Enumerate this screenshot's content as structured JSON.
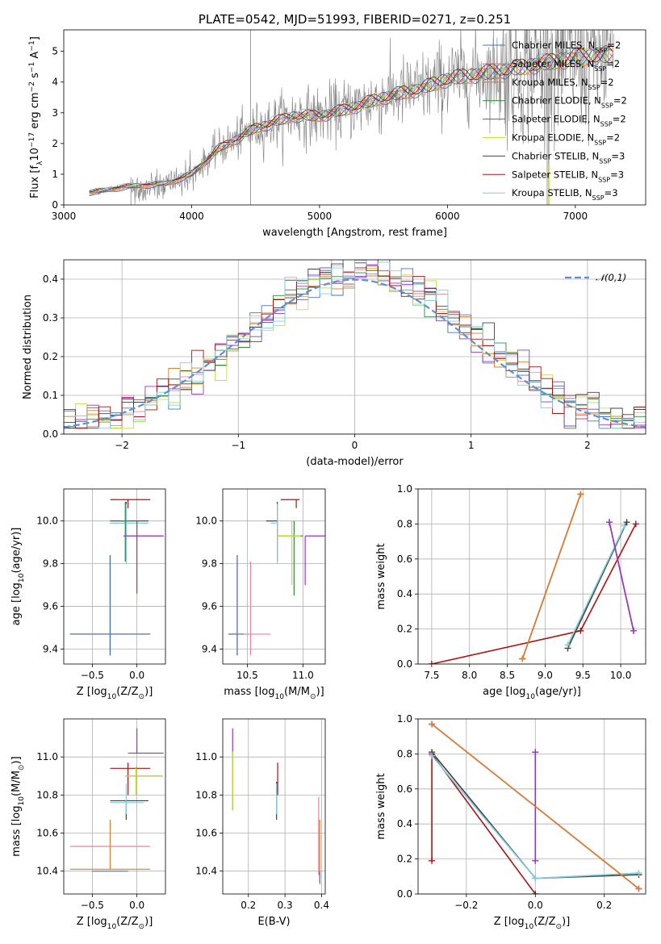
{
  "colors": {
    "Chabrier MILES": "#4c72b0",
    "Salpeter MILES": "#e8829c",
    "Kroupa MILES": "#e07b28",
    "Chabrier ELODIE": "#2e8b3d",
    "Salpeter ELODIE": "#9b30c8",
    "Kroupa ELODIE": "#c8dc3c",
    "Chabrier STELIB": "#404040",
    "Salpeter STELIB": "#b01010",
    "Kroupa STELIB": "#80d0e0",
    "data": "#808080",
    "normal": "#5b8fd9"
  },
  "chart_data": [
    {
      "id": "spectrum",
      "type": "line",
      "title": "PLATE=0542, MJD=51993, FIBERID=0271, z=0.251",
      "xlabel": "wavelength [Angstrom, rest frame]",
      "ylabel": "Flux [f$_\\lambda$10$^{-17}$ erg cm$^{-2}$ s$^{-1}$ A$^{-1}$]",
      "xlim": [
        3000,
        7550
      ],
      "ylim": [
        0,
        5.7
      ],
      "xticks": [
        "3000",
        "4000",
        "5000",
        "6000",
        "7000"
      ],
      "yticks": [
        "0",
        "1",
        "2",
        "3",
        "4",
        "5"
      ],
      "grid": false,
      "legend_position": "top-right",
      "series": [
        {
          "name": "Chabrier MILES, N$_{SSP}$=2"
        },
        {
          "name": "Salpeter MILES, N$_{SSP}$=2"
        },
        {
          "name": "Kroupa MILES, N$_{SSP}$=2"
        },
        {
          "name": "Chabrier ELODIE, N$_{SSP}$=2"
        },
        {
          "name": "Salpeter ELODIE, N$_{SSP}$=2"
        },
        {
          "name": "Kroupa ELODIE, N$_{SSP}$=2"
        },
        {
          "name": "Chabrier STELIB, N$_{SSP}$=3"
        },
        {
          "name": "Salpeter STELIB, N$_{SSP}$=3"
        },
        {
          "name": "Kroupa STELIB, N$_{SSP}$=3"
        }
      ],
      "continuum": {
        "x": [
          3200,
          3500,
          3800,
          4000,
          4200,
          4500,
          4800,
          5000,
          5200,
          5500,
          5800,
          6000,
          6300,
          6600,
          7000,
          7300
        ],
        "y": [
          0.4,
          0.6,
          0.7,
          1.0,
          1.8,
          2.5,
          2.9,
          2.9,
          3.1,
          3.5,
          3.8,
          4.1,
          4.3,
          4.5,
          4.8,
          4.9
        ]
      }
    },
    {
      "id": "residuals",
      "type": "bar",
      "xlabel": "(data-model)/error",
      "ylabel": "Normed distribution",
      "xlim": [
        -2.5,
        2.5
      ],
      "ylim": [
        0,
        0.45
      ],
      "xticks": [
        "−2",
        "−1",
        "0",
        "1",
        "2"
      ],
      "yticks": [
        "0.0",
        "0.1",
        "0.2",
        "0.3",
        "0.4"
      ],
      "grid": true,
      "bin_width": 0.1,
      "legend_position": "top-right",
      "series": [
        {
          "name": "$\\mathcal{N}(0,1)$"
        }
      ]
    },
    {
      "id": "age-vs-Z",
      "type": "scatter",
      "xlabel": "Z [log$_{10}$(Z/Z$_\\odot$)]",
      "ylabel": "age  [log$_{10}$(age/yr)]",
      "xlim": [
        -0.82,
        0.32
      ],
      "ylim": [
        9.33,
        10.15
      ],
      "xticks": [
        "−0.5",
        "0.0"
      ],
      "yticks": [
        "9.4",
        "9.6",
        "9.8",
        "10.0"
      ],
      "grid": true,
      "points": [
        {
          "model": "Kroupa MILES",
          "x": -0.3,
          "xerr": [
            0.45,
            0.45
          ],
          "y": 9.47,
          "yerr": [
            0.1,
            0.37
          ]
        },
        {
          "model": "Salpeter MILES",
          "x": -0.3,
          "xerr": [
            0.45,
            0.45
          ],
          "y": 9.47,
          "yerr": [
            0.1,
            0.37
          ]
        },
        {
          "model": "Chabrier MILES",
          "x": -0.3,
          "xerr": [
            0.45,
            0.45
          ],
          "y": 9.47,
          "yerr": [
            0.1,
            0.37
          ]
        },
        {
          "model": "Salpeter STELIB",
          "x": -0.1,
          "xerr": [
            0.2,
            0.25
          ],
          "y": 10.1,
          "yerr": [
            0.04,
            0.0
          ]
        },
        {
          "model": "Chabrier STELIB",
          "x": -0.12,
          "xerr": [
            0.18,
            0.25
          ],
          "y": 10.0,
          "yerr": [
            0.19,
            0.09
          ]
        },
        {
          "model": "Kroupa STELIB",
          "x": -0.12,
          "xerr": [
            0.18,
            0.25
          ],
          "y": 9.99,
          "yerr": [
            0.19,
            0.09
          ]
        },
        {
          "model": "Chabrier ELODIE",
          "x": -0.13,
          "xerr": [
            0.05,
            0.05
          ],
          "y": 10.0,
          "yerr": [
            0.19,
            0.09
          ]
        },
        {
          "model": "Kroupa ELODIE",
          "x": 0.0,
          "xerr": [
            0.15,
            0.3
          ],
          "y": 9.93,
          "yerr": [
            0.3,
            0.07
          ]
        },
        {
          "model": "Salpeter ELODIE",
          "x": 0.0,
          "xerr": [
            0.15,
            0.3
          ],
          "y": 9.93,
          "yerr": [
            0.27,
            0.07
          ]
        }
      ]
    },
    {
      "id": "age-vs-mass",
      "type": "scatter",
      "xlabel": "mass [log$_{10}$(M/M$_\\odot$)]",
      "ylabel": "",
      "xlim": [
        10.28,
        11.2
      ],
      "ylim": [
        9.33,
        10.15
      ],
      "xticks": [
        "10.5",
        "11.0"
      ],
      "yticks": [
        "9.4",
        "9.6",
        "9.8",
        "10.0"
      ],
      "grid": true,
      "points": [
        {
          "model": "Kroupa MILES",
          "x": 10.41,
          "xerr": [
            0.08,
            0.0
          ],
          "y": 9.47,
          "yerr": [
            0.1,
            0.37
          ]
        },
        {
          "model": "Salpeter MILES",
          "x": 10.53,
          "xerr": [
            0.1,
            0.18
          ],
          "y": 9.47,
          "yerr": [
            0.1,
            0.34
          ]
        },
        {
          "model": "Chabrier MILES",
          "x": 10.41,
          "xerr": [
            0.08,
            0.06
          ],
          "y": 9.47,
          "yerr": [
            0.1,
            0.37
          ]
        },
        {
          "model": "Salpeter STELIB",
          "x": 10.94,
          "xerr": [
            0.14,
            0.03
          ],
          "y": 10.1,
          "yerr": [
            0.04,
            0.0
          ]
        },
        {
          "model": "Chabrier STELIB",
          "x": 10.77,
          "xerr": [
            0.1,
            0.0
          ],
          "y": 10.0,
          "yerr": [
            0.19,
            0.09
          ]
        },
        {
          "model": "Kroupa STELIB",
          "x": 10.77,
          "xerr": [
            0.06,
            0.0
          ],
          "y": 9.99,
          "yerr": [
            0.19,
            0.09
          ]
        },
        {
          "model": "Chabrier ELODIE",
          "x": 10.92,
          "xerr": [
            0.15,
            0.08
          ],
          "y": 9.93,
          "yerr": [
            0.28,
            0.07
          ]
        },
        {
          "model": "Kroupa ELODIE",
          "x": 10.9,
          "xerr": [
            0.13,
            0.08
          ],
          "y": 9.93,
          "yerr": [
            0.23,
            0.07
          ]
        },
        {
          "model": "Salpeter ELODIE",
          "x": 11.02,
          "xerr": [
            0.0,
            0.18
          ],
          "y": 9.93,
          "yerr": [
            0.23,
            0.0
          ]
        }
      ]
    },
    {
      "id": "massweight-vs-age",
      "type": "line",
      "xlabel": "age  [log$_{10}$(age/yr)]",
      "ylabel": "mass weight",
      "xlim": [
        7.32,
        10.33
      ],
      "ylim": [
        0,
        1
      ],
      "xticks": [
        "7.5",
        "8.0",
        "8.5",
        "9.0",
        "9.5",
        "10.0"
      ],
      "yticks": [
        "0.0",
        "0.2",
        "0.4",
        "0.6",
        "0.8",
        "1.0"
      ],
      "grid": true,
      "series": [
        {
          "model": "Salpeter STELIB",
          "x": [
            7.5,
            9.47,
            10.2
          ],
          "y": [
            0.0,
            0.19,
            0.8
          ]
        },
        {
          "model": "Chabrier STELIB",
          "x": [
            9.3,
            10.08
          ],
          "y": [
            0.09,
            0.81
          ]
        },
        {
          "model": "Kroupa STELIB",
          "x": [
            9.3,
            10.05
          ],
          "y": [
            0.11,
            0.79
          ]
        },
        {
          "model": "Chabrier ELODIE",
          "x": [
            9.85,
            10.17
          ],
          "y": [
            0.81,
            0.19
          ]
        },
        {
          "model": "Kroupa ELODIE",
          "x": [
            9.85,
            10.17
          ],
          "y": [
            0.81,
            0.19
          ]
        },
        {
          "model": "Salpeter ELODIE",
          "x": [
            9.85,
            10.17
          ],
          "y": [
            0.81,
            0.19
          ]
        },
        {
          "model": "Chabrier MILES",
          "x": [
            8.7,
            9.47
          ],
          "y": [
            0.03,
            0.97
          ]
        },
        {
          "model": "Salpeter MILES",
          "x": [
            8.7,
            9.47
          ],
          "y": [
            0.03,
            0.97
          ]
        },
        {
          "model": "Kroupa MILES",
          "x": [
            8.7,
            9.47
          ],
          "y": [
            0.03,
            0.97
          ]
        }
      ]
    },
    {
      "id": "mass-vs-Z",
      "type": "scatter",
      "xlabel": "Z [log$_{10}$(Z/Z$_\\odot$)]",
      "ylabel": "mass [log$_{10}$(M/M$_\\odot$)]",
      "xlim": [
        -0.82,
        0.32
      ],
      "ylim": [
        10.28,
        11.2
      ],
      "xticks": [
        "−0.5",
        "0.0"
      ],
      "yticks": [
        "10.4",
        "10.6",
        "10.8",
        "11.0"
      ],
      "grid": true,
      "points": [
        {
          "model": "Kroupa MILES",
          "x": -0.3,
          "xerr": [
            0.45,
            0.45
          ],
          "y": 10.41,
          "yerr": [
            0.0,
            0.26
          ]
        },
        {
          "model": "Salpeter MILES",
          "x": -0.3,
          "xerr": [
            0.45,
            0.45
          ],
          "y": 10.53,
          "yerr": [
            0.0,
            0.0
          ]
        },
        {
          "model": "Chabrier MILES",
          "x": -0.3,
          "xerr": [
            0.2,
            0.2
          ],
          "y": 10.4,
          "yerr": [
            0.0,
            0.0
          ]
        },
        {
          "model": "Salpeter STELIB",
          "x": -0.1,
          "xerr": [
            0.2,
            0.25
          ],
          "y": 10.94,
          "yerr": [
            0.14,
            0.03
          ]
        },
        {
          "model": "Chabrier STELIB",
          "x": -0.12,
          "xerr": [
            0.18,
            0.25
          ],
          "y": 10.77,
          "yerr": [
            0.1,
            0.0
          ]
        },
        {
          "model": "Kroupa STELIB",
          "x": -0.12,
          "xerr": [
            0.18,
            0.2
          ],
          "y": 10.76,
          "yerr": [
            0.06,
            0.1
          ]
        },
        {
          "model": "Chabrier ELODIE",
          "x": -0.01,
          "xerr": [
            0.12,
            0.3
          ],
          "y": 10.9,
          "yerr": [
            0.1,
            0.05
          ]
        },
        {
          "model": "Kroupa ELODIE",
          "x": -0.01,
          "xerr": [
            0.12,
            0.3
          ],
          "y": 10.9,
          "yerr": [
            0.1,
            0.05
          ]
        },
        {
          "model": "Salpeter ELODIE",
          "x": 0.0,
          "xerr": [
            0.1,
            0.3
          ],
          "y": 11.02,
          "yerr": [
            0.0,
            0.13
          ]
        }
      ]
    },
    {
      "id": "mass-vs-ebv",
      "type": "scatter",
      "xlabel": "E(B-V)",
      "ylabel": "",
      "xlim": [
        0.13,
        0.41
      ],
      "ylim": [
        10.28,
        11.2
      ],
      "xticks": [
        "0.2",
        "0.3",
        "0.4"
      ],
      "yticks": [
        "10.4",
        "10.6",
        "10.8",
        "11.0"
      ],
      "grid": true,
      "points": [
        {
          "model": "Salpeter ELODIE",
          "x": 0.157,
          "y": 11.02,
          "yerr": [
            0.0,
            0.13
          ]
        },
        {
          "model": "Chabrier ELODIE",
          "x": 0.157,
          "y": 10.9,
          "yerr": [
            0.18,
            0.13
          ]
        },
        {
          "model": "Kroupa ELODIE",
          "x": 0.157,
          "y": 10.9,
          "yerr": [
            0.18,
            0.13
          ]
        },
        {
          "model": "Salpeter STELIB",
          "x": 0.28,
          "y": 10.94,
          "yerr": [
            0.14,
            0.03
          ]
        },
        {
          "model": "Chabrier STELIB",
          "x": 0.277,
          "y": 10.77,
          "yerr": [
            0.1,
            0.1
          ]
        },
        {
          "model": "Kroupa STELIB",
          "x": 0.277,
          "y": 10.76,
          "yerr": [
            0.06,
            0.1
          ]
        },
        {
          "model": "Kroupa MILES",
          "x": 0.395,
          "y": 10.41,
          "yerr": [
            0.08,
            0.26
          ]
        },
        {
          "model": "Salpeter MILES",
          "x": 0.392,
          "y": 10.53,
          "yerr": [
            0.15,
            0.26
          ]
        },
        {
          "model": "Chabrier MILES",
          "x": 0.395,
          "y": 10.4,
          "yerr": [
            0.06,
            0.0
          ]
        }
      ]
    },
    {
      "id": "massweight-vs-Z",
      "type": "line",
      "xlabel": "Z [log$_{10}$(Z/Z$_\\odot$)]",
      "ylabel": "mass weight",
      "xlim": [
        -0.34,
        0.32
      ],
      "ylim": [
        0,
        1
      ],
      "xticks": [
        "−0.2",
        "0.0",
        "0.2"
      ],
      "yticks": [
        "0.0",
        "0.2",
        "0.4",
        "0.6",
        "0.8",
        "1.0"
      ],
      "grid": true,
      "series": [
        {
          "model": "Salpeter STELIB",
          "x": [
            -0.3,
            -0.3,
            0.0
          ],
          "y": [
            0.19,
            0.8,
            0.0
          ]
        },
        {
          "model": "Chabrier STELIB",
          "x": [
            -0.3,
            0.0,
            0.3
          ],
          "y": [
            0.81,
            0.09,
            0.11
          ]
        },
        {
          "model": "Kroupa STELIB",
          "x": [
            -0.3,
            0.0,
            0.3
          ],
          "y": [
            0.79,
            0.09,
            0.12
          ]
        },
        {
          "model": "Chabrier ELODIE",
          "x": [
            0.0,
            0.0
          ],
          "y": [
            0.19,
            0.81
          ]
        },
        {
          "model": "Kroupa ELODIE",
          "x": [
            0.0,
            0.0
          ],
          "y": [
            0.19,
            0.81
          ]
        },
        {
          "model": "Salpeter ELODIE",
          "x": [
            0.0,
            0.0
          ],
          "y": [
            0.19,
            0.81
          ]
        },
        {
          "model": "Chabrier MILES",
          "x": [
            -0.3,
            0.3
          ],
          "y": [
            0.97,
            0.03
          ]
        },
        {
          "model": "Salpeter MILES",
          "x": [
            -0.3,
            0.3
          ],
          "y": [
            0.97,
            0.03
          ]
        },
        {
          "model": "Kroupa MILES",
          "x": [
            -0.3,
            0.3
          ],
          "y": [
            0.97,
            0.03
          ]
        }
      ]
    }
  ]
}
